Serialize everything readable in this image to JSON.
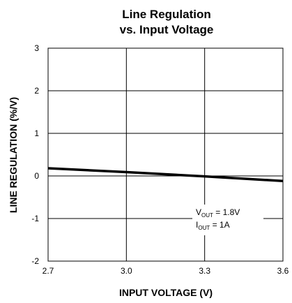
{
  "chart_data": {
    "type": "line",
    "title_line1": "Line Regulation",
    "title_line2": "vs. Input Voltage",
    "xlabel": "INPUT VOLTAGE (V)",
    "ylabel": "LINE REGULATION (%/V)",
    "xlim": [
      2.7,
      3.6
    ],
    "ylim": [
      -2,
      3
    ],
    "x_ticks": [
      "2.7",
      "3.0",
      "3.3",
      "3.6"
    ],
    "y_ticks": [
      "-2",
      "-1",
      "0",
      "1",
      "2",
      "3"
    ],
    "grid": true,
    "series": [
      {
        "x": [
          2.7,
          3.0,
          3.3,
          3.6
        ],
        "y": [
          0.18,
          0.09,
          -0.01,
          -0.12
        ]
      }
    ],
    "annotation": {
      "line1_main": "V",
      "line1_sub": "OUT",
      "line1_rest": " = 1.8V",
      "line2_main": "I",
      "line2_sub": "OUT",
      "line2_rest": " = 1A"
    }
  }
}
